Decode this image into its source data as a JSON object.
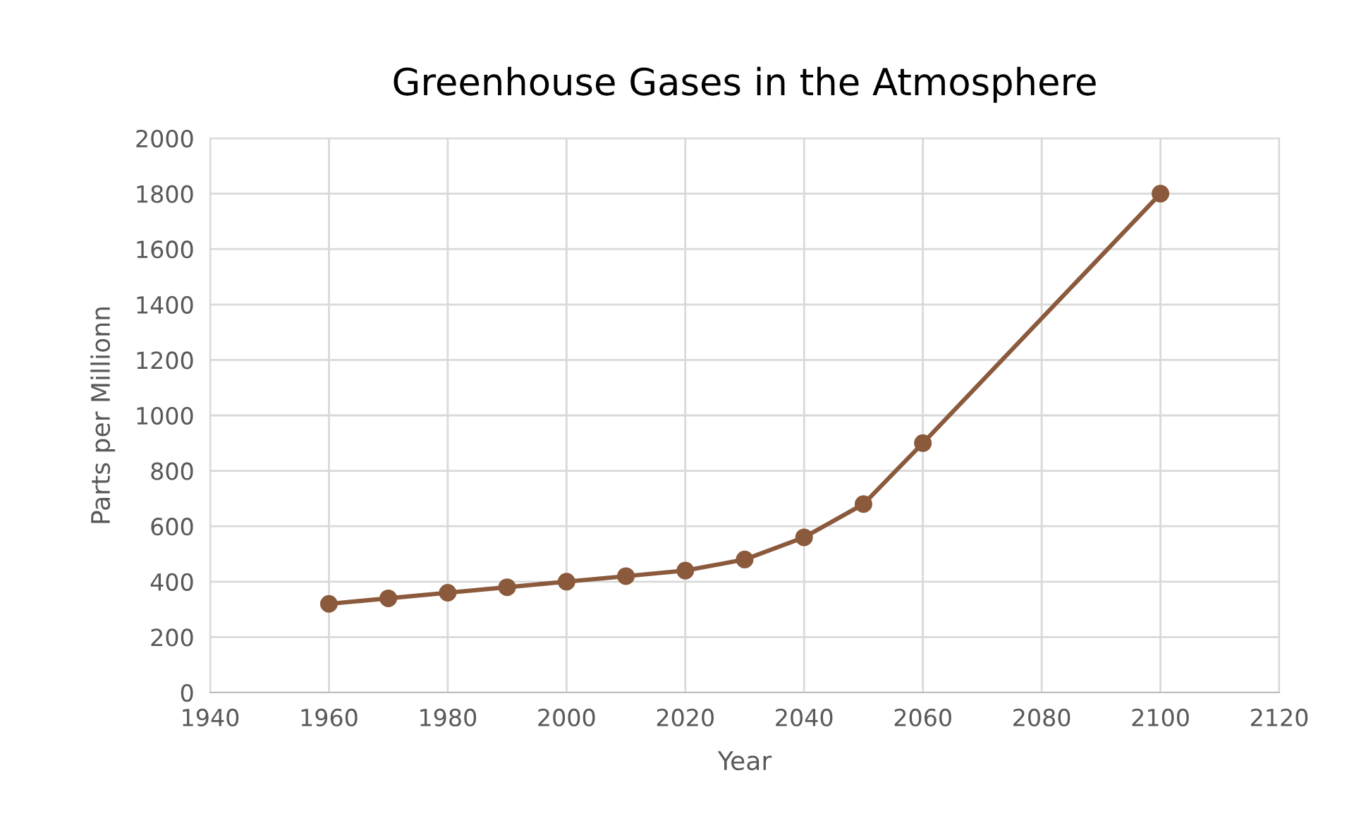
{
  "chart_data": {
    "type": "line",
    "title": "Greenhouse Gases in the Atmosphere",
    "xlabel": "Year",
    "ylabel": "Parts per Millionn",
    "x": [
      1960,
      1970,
      1980,
      1990,
      2000,
      2010,
      2020,
      2030,
      2040,
      2050,
      2060,
      2100
    ],
    "series": [
      {
        "color": "#8b5a3c",
        "values": [
          320,
          340,
          360,
          380,
          400,
          420,
          440,
          480,
          560,
          680,
          900,
          1800
        ]
      }
    ],
    "xlim": [
      1940,
      2120
    ],
    "xticks": [
      1940,
      1960,
      1980,
      2000,
      2020,
      2040,
      2060,
      2080,
      2100,
      2120
    ],
    "ylim": [
      0,
      2000
    ],
    "yticks": [
      0,
      200,
      400,
      600,
      800,
      1000,
      1200,
      1400,
      1600,
      1800,
      2000
    ],
    "grid": true,
    "marker": "circle",
    "line_style": "solid"
  }
}
